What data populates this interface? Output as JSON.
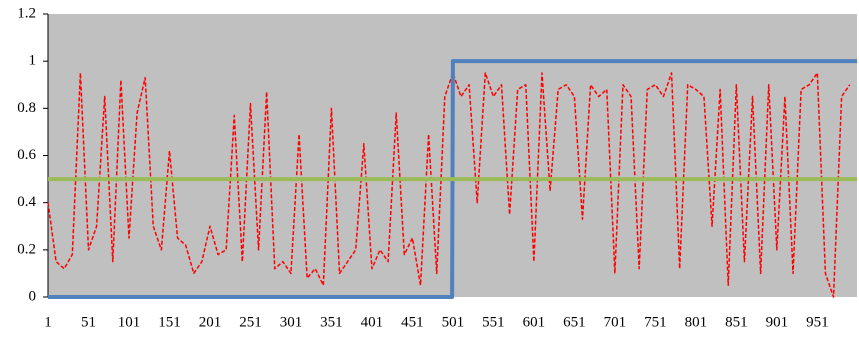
{
  "chart_data": {
    "type": "line",
    "xlim": [
      1,
      1000
    ],
    "xticks": [
      1,
      51,
      101,
      151,
      201,
      251,
      301,
      351,
      401,
      451,
      501,
      551,
      601,
      651,
      701,
      751,
      801,
      851,
      901,
      951
    ],
    "ylim": [
      0,
      1.2
    ],
    "yticks": [
      0,
      0.2,
      0.4,
      0.6,
      0.8,
      1,
      1.2
    ],
    "background": "#c0c0c0",
    "series": [
      {
        "color": "#ff0000",
        "dashed": true,
        "width": 1.5,
        "x": [
          1,
          11,
          21,
          31,
          41,
          51,
          61,
          71,
          81,
          91,
          101,
          111,
          121,
          131,
          141,
          151,
          161,
          171,
          181,
          191,
          201,
          211,
          221,
          231,
          241,
          251,
          261,
          271,
          281,
          291,
          301,
          311,
          321,
          331,
          341,
          351,
          361,
          371,
          381,
          391,
          401,
          411,
          421,
          431,
          441,
          451,
          461,
          471,
          481,
          491,
          501,
          511,
          521,
          531,
          541,
          551,
          561,
          571,
          581,
          591,
          601,
          611,
          621,
          631,
          641,
          651,
          661,
          671,
          681,
          691,
          701,
          711,
          721,
          731,
          741,
          751,
          761,
          771,
          781,
          791,
          801,
          811,
          821,
          831,
          841,
          851,
          861,
          871,
          881,
          891,
          901,
          911,
          921,
          931,
          941,
          951,
          961,
          971,
          981,
          991
        ],
        "values": [
          0.4,
          0.15,
          0.12,
          0.18,
          0.95,
          0.2,
          0.3,
          0.85,
          0.15,
          0.92,
          0.25,
          0.78,
          0.93,
          0.3,
          0.2,
          0.62,
          0.25,
          0.22,
          0.1,
          0.15,
          0.3,
          0.18,
          0.2,
          0.77,
          0.15,
          0.82,
          0.2,
          0.87,
          0.12,
          0.15,
          0.1,
          0.69,
          0.08,
          0.12,
          0.05,
          0.8,
          0.1,
          0.15,
          0.2,
          0.65,
          0.12,
          0.2,
          0.15,
          0.78,
          0.18,
          0.25,
          0.05,
          0.69,
          0.1,
          0.85,
          0.95,
          0.85,
          0.9,
          0.4,
          0.95,
          0.85,
          0.9,
          0.35,
          0.88,
          0.9,
          0.15,
          0.95,
          0.45,
          0.88,
          0.9,
          0.85,
          0.33,
          0.9,
          0.85,
          0.88,
          0.1,
          0.9,
          0.85,
          0.12,
          0.88,
          0.9,
          0.85,
          0.95,
          0.12,
          0.9,
          0.88,
          0.85,
          0.3,
          0.88,
          0.05,
          0.9,
          0.15,
          0.85,
          0.1,
          0.9,
          0.2,
          0.85,
          0.1,
          0.88,
          0.9,
          0.95,
          0.1,
          0.0,
          0.85,
          0.9
        ]
      },
      {
        "color": "#4f81bd",
        "dashed": false,
        "width": 4,
        "x": [
          1,
          500,
          501,
          1000
        ],
        "values": [
          0,
          0,
          1,
          1
        ]
      },
      {
        "color": "#9bbb59",
        "dashed": false,
        "width": 4,
        "x": [
          1,
          1000
        ],
        "values": [
          0.5,
          0.5
        ]
      }
    ]
  }
}
